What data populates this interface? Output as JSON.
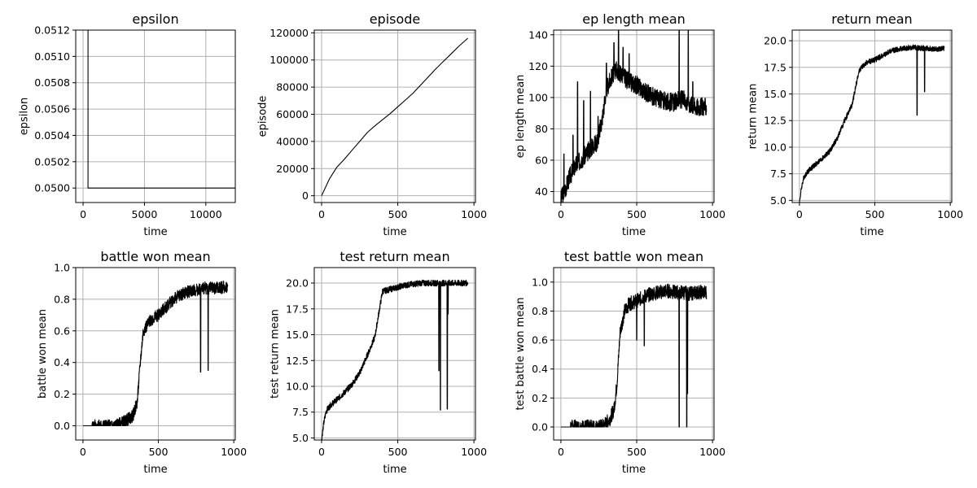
{
  "chart_data": [
    {
      "type": "line",
      "title": "epsilon",
      "xlabel": "time",
      "ylabel": "epsilon",
      "xlim": [
        -600,
        12400
      ],
      "ylim": [
        0.04989,
        0.0512
      ],
      "xticks": [
        0,
        5000,
        10000
      ],
      "yticks": [
        0.05,
        0.0502,
        0.0504,
        0.0506,
        0.0508,
        0.051,
        0.0512
      ],
      "ytick_labels": [
        "0.0500",
        "0.0502",
        "0.0504",
        "0.0506",
        "0.0508",
        "0.0510",
        "0.0512"
      ],
      "noise": 0,
      "seed": 1,
      "series": [
        {
          "x": [
            0,
            400,
            400,
            12400
          ],
          "y": [
            0.0512,
            0.0512,
            0.05,
            0.05
          ]
        }
      ]
    },
    {
      "type": "line",
      "title": "episode",
      "xlabel": "time",
      "ylabel": "episode",
      "xlim": [
        -48,
        1010
      ],
      "ylim": [
        -5000,
        122000
      ],
      "xticks": [
        0,
        500,
        1000
      ],
      "yticks": [
        0,
        20000,
        40000,
        60000,
        80000,
        100000,
        120000
      ],
      "ytick_labels": [
        "0",
        "20000",
        "40000",
        "60000",
        "80000",
        "100000",
        "120000"
      ],
      "noise": 0,
      "seed": 2,
      "series": [
        {
          "x": [
            0,
            50,
            100,
            150,
            200,
            250,
            300,
            350,
            400,
            450,
            500,
            550,
            600,
            650,
            700,
            750,
            800,
            850,
            900,
            960
          ],
          "y": [
            0,
            12000,
            21000,
            27000,
            33500,
            40000,
            46500,
            51500,
            56000,
            60500,
            65500,
            70500,
            75500,
            81500,
            87500,
            93500,
            99000,
            104500,
            110000,
            116000
          ]
        }
      ]
    },
    {
      "type": "line",
      "title": "ep length mean",
      "xlabel": "time",
      "ylabel": "ep length mean",
      "xlim": [
        -48,
        1010
      ],
      "ylim": [
        33,
        143
      ],
      "xticks": [
        0,
        500,
        1000
      ],
      "yticks": [
        40,
        60,
        80,
        100,
        120,
        140
      ],
      "ytick_labels": [
        "40",
        "60",
        "80",
        "100",
        "120",
        "140"
      ],
      "noise": 6,
      "seed": 3,
      "spikes": [
        [
          20,
          64
        ],
        [
          80,
          76
        ],
        [
          110,
          110
        ],
        [
          150,
          98
        ],
        [
          195,
          104
        ],
        [
          245,
          88
        ],
        [
          300,
          122
        ],
        [
          350,
          135
        ],
        [
          380,
          143
        ],
        [
          410,
          132
        ],
        [
          450,
          128
        ],
        [
          565,
          108
        ],
        [
          780,
          143
        ],
        [
          840,
          143
        ],
        [
          870,
          110
        ]
      ],
      "series": [
        {
          "x": [
            0,
            30,
            60,
            100,
            150,
            200,
            240,
            270,
            300,
            330,
            360,
            400,
            450,
            500,
            550,
            600,
            650,
            700,
            750,
            800,
            850,
            900,
            960
          ],
          "y": [
            35,
            42,
            50,
            57,
            62,
            68,
            72,
            85,
            105,
            112,
            118,
            115,
            110,
            108,
            104,
            101,
            99,
            97,
            97,
            99,
            96,
            94,
            94
          ]
        }
      ]
    },
    {
      "type": "line",
      "title": "return mean",
      "xlabel": "time",
      "ylabel": "return mean",
      "xlim": [
        -48,
        1010
      ],
      "ylim": [
        4.8,
        21.0
      ],
      "xticks": [
        0,
        500,
        1000
      ],
      "yticks": [
        5.0,
        7.5,
        10.0,
        12.5,
        15.0,
        17.5,
        20.0
      ],
      "ytick_labels": [
        "5.0",
        "7.5",
        "10.0",
        "12.5",
        "15.0",
        "17.5",
        "20.0"
      ],
      "noise": 0.25,
      "seed": 4,
      "spikes": [
        [
          780,
          13.0
        ],
        [
          830,
          15.2
        ]
      ],
      "series": [
        {
          "x": [
            0,
            15,
            30,
            60,
            100,
            150,
            200,
            250,
            300,
            350,
            380,
            400,
            450,
            500,
            550,
            600,
            650,
            700,
            750,
            800,
            850,
            900,
            960
          ],
          "y": [
            4.8,
            6.3,
            7.2,
            7.8,
            8.3,
            8.9,
            9.6,
            10.8,
            12.5,
            14.0,
            16.2,
            17.3,
            18.0,
            18.2,
            18.6,
            19.0,
            19.2,
            19.3,
            19.4,
            19.3,
            19.3,
            19.2,
            19.3
          ]
        }
      ]
    },
    {
      "type": "line",
      "title": "battle won mean",
      "xlabel": "time",
      "ylabel": "battle won mean",
      "xlim": [
        -48,
        1010
      ],
      "ylim": [
        -0.09,
        1.0
      ],
      "xticks": [
        0,
        500,
        1000
      ],
      "yticks": [
        0.0,
        0.2,
        0.4,
        0.6,
        0.8,
        1.0
      ],
      "ytick_labels": [
        "0.0",
        "0.2",
        "0.4",
        "0.6",
        "0.8",
        "1.0"
      ],
      "noise": 0.04,
      "seed": 5,
      "spikes": [
        [
          780,
          0.34
        ],
        [
          830,
          0.35
        ]
      ],
      "series": [
        {
          "x": [
            0,
            200,
            240,
            280,
            330,
            360,
            380,
            400,
            450,
            500,
            550,
            600,
            650,
            700,
            750,
            800,
            850,
            900,
            960
          ],
          "y": [
            0,
            0,
            0.01,
            0.03,
            0.06,
            0.15,
            0.4,
            0.6,
            0.67,
            0.7,
            0.75,
            0.8,
            0.83,
            0.85,
            0.86,
            0.87,
            0.87,
            0.87,
            0.88
          ]
        }
      ]
    },
    {
      "type": "line",
      "title": "test return mean",
      "xlabel": "time",
      "ylabel": "test return mean",
      "xlim": [
        -48,
        1010
      ],
      "ylim": [
        4.8,
        21.5
      ],
      "xticks": [
        0,
        500,
        1000
      ],
      "yticks": [
        5.0,
        7.5,
        10.0,
        12.5,
        15.0,
        17.5,
        20.0
      ],
      "ytick_labels": [
        "5.0",
        "7.5",
        "10.0",
        "12.5",
        "15.0",
        "17.5",
        "20.0"
      ],
      "noise": 0.3,
      "seed": 6,
      "spikes": [
        [
          770,
          11.5
        ],
        [
          780,
          7.7
        ],
        [
          825,
          7.8
        ],
        [
          830,
          17.0
        ]
      ],
      "series": [
        {
          "x": [
            0,
            15,
            30,
            60,
            100,
            150,
            200,
            250,
            300,
            350,
            380,
            400,
            450,
            500,
            550,
            600,
            650,
            700,
            750,
            800,
            850,
            900,
            960
          ],
          "y": [
            4.8,
            6.5,
            7.6,
            8.2,
            8.7,
            9.4,
            10.2,
            11.3,
            13.0,
            14.8,
            17.5,
            19.2,
            19.4,
            19.6,
            19.8,
            19.9,
            20.0,
            20.0,
            20.0,
            20.0,
            20.0,
            20.0,
            20.0
          ]
        }
      ]
    },
    {
      "type": "line",
      "title": "test battle won mean",
      "xlabel": "time",
      "ylabel": "test battle won mean",
      "xlim": [
        -48,
        1010
      ],
      "ylim": [
        -0.09,
        1.1
      ],
      "xticks": [
        0,
        500,
        1000
      ],
      "yticks": [
        0.0,
        0.2,
        0.4,
        0.6,
        0.8,
        1.0
      ],
      "ytick_labels": [
        "0.0",
        "0.2",
        "0.4",
        "0.6",
        "0.8",
        "1.0"
      ],
      "noise": 0.05,
      "seed": 7,
      "spikes": [
        [
          200,
          0.03
        ],
        [
          300,
          0.06
        ],
        [
          500,
          0.6
        ],
        [
          550,
          0.56
        ],
        [
          780,
          0.0
        ],
        [
          830,
          0.0
        ],
        [
          835,
          0.23
        ]
      ],
      "series": [
        {
          "x": [
            0,
            250,
            280,
            320,
            350,
            370,
            390,
            420,
            450,
            500,
            550,
            600,
            650,
            700,
            750,
            800,
            850,
            900,
            960
          ],
          "y": [
            0,
            0,
            0.01,
            0.05,
            0.12,
            0.3,
            0.65,
            0.8,
            0.85,
            0.87,
            0.9,
            0.92,
            0.93,
            0.94,
            0.93,
            0.93,
            0.92,
            0.93,
            0.93
          ]
        }
      ]
    }
  ]
}
